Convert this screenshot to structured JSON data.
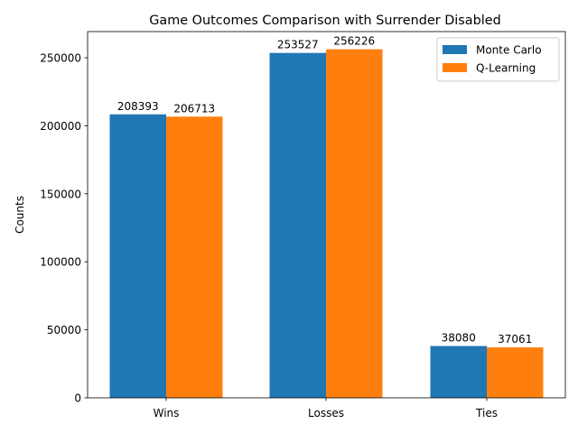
{
  "chart_data": {
    "type": "bar",
    "title": "Game Outcomes Comparison with Surrender Disabled",
    "xlabel": "",
    "ylabel": "Counts",
    "categories": [
      "Wins",
      "Losses",
      "Ties"
    ],
    "series": [
      {
        "name": "Monte Carlo",
        "color": "#1f77b4",
        "values": [
          208393,
          253527,
          38080
        ]
      },
      {
        "name": "Q-Learning",
        "color": "#ff7f0e",
        "values": [
          206713,
          256226,
          37061
        ]
      }
    ],
    "ylim": [
      0,
      269237
    ],
    "yticks": [
      0,
      50000,
      100000,
      150000,
      200000,
      250000
    ],
    "grid": false,
    "legend": "top-right"
  }
}
